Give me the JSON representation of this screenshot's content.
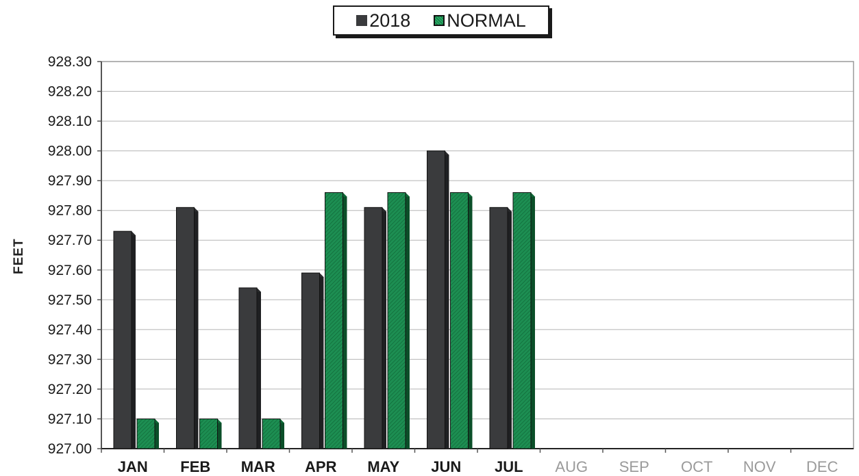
{
  "chart_data": {
    "type": "bar",
    "title": "",
    "xlabel": "",
    "ylabel": "FEET",
    "ylim": [
      927.0,
      928.3
    ],
    "yticks": [
      "927.00",
      "927.10",
      "927.20",
      "927.30",
      "927.40",
      "927.50",
      "927.60",
      "927.70",
      "927.80",
      "927.90",
      "928.00",
      "928.10",
      "928.20",
      "928.30"
    ],
    "categories": [
      "JAN",
      "FEB",
      "MAR",
      "APR",
      "MAY",
      "JUN",
      "JUL",
      "AUG",
      "SEP",
      "OCT",
      "NOV",
      "DEC"
    ],
    "series": [
      {
        "name": "2018",
        "color": "#3a3b3d",
        "values": [
          927.73,
          927.81,
          927.54,
          927.59,
          927.81,
          928.0,
          927.81,
          null,
          null,
          null,
          null,
          null
        ]
      },
      {
        "name": "NORMAL",
        "color": "#1d8e52",
        "values": [
          927.1,
          927.1,
          927.1,
          927.86,
          927.86,
          927.86,
          927.86,
          null,
          null,
          null,
          null,
          null
        ]
      }
    ],
    "grid": true,
    "legend_position": "top-center"
  },
  "legend": {
    "label_2018": "2018",
    "label_normal": "NORMAL"
  },
  "colors": {
    "bar_2018": "#3a3b3d",
    "bar_normal": "#1d8e52",
    "active_tick": "#1a1a1a",
    "inactive_tick": "#9a9a9a"
  }
}
